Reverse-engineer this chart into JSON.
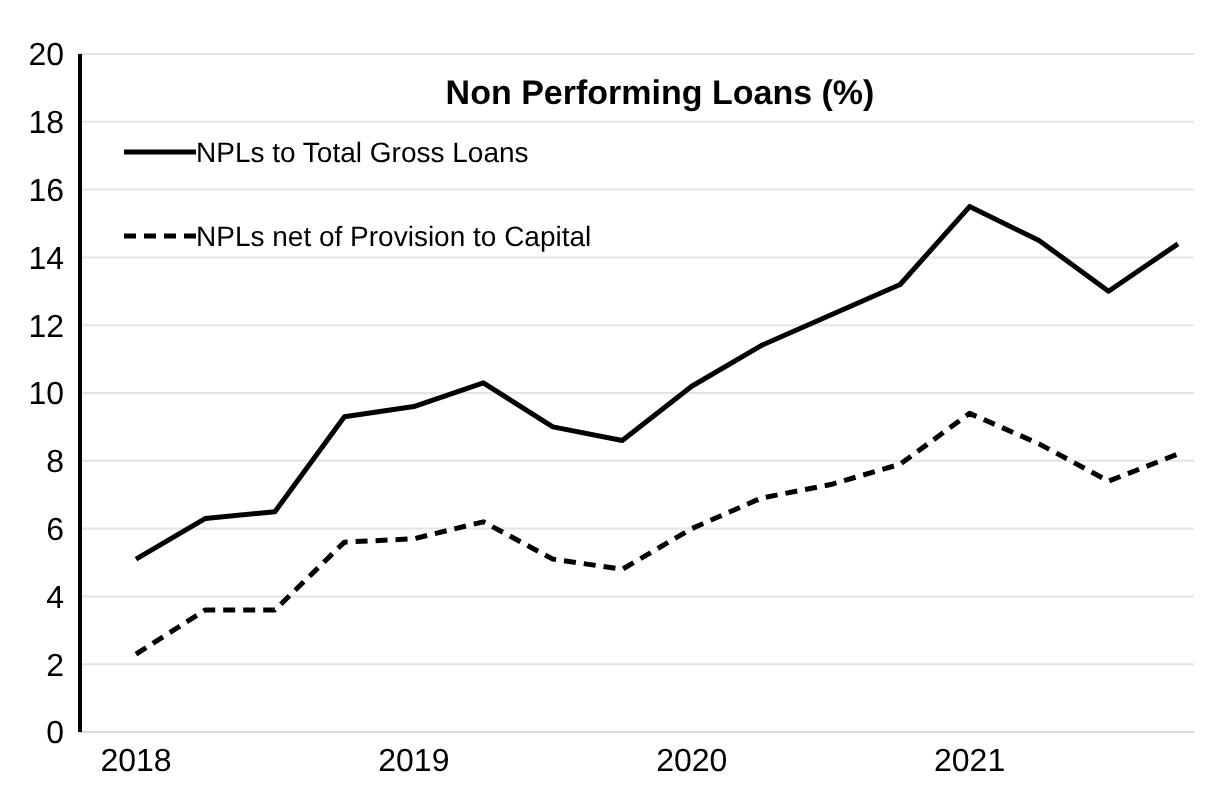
{
  "chart_data": {
    "type": "line",
    "title": "Non Performing Loans (%)",
    "categories": [
      "2018",
      null,
      null,
      null,
      "2019",
      null,
      null,
      null,
      "2020",
      null,
      null,
      null,
      "2021",
      null,
      null,
      null
    ],
    "series": [
      {
        "name": "NPLs to Total Gross Loans",
        "color": "#000000",
        "line_style": "solid",
        "values": [
          5.1,
          6.3,
          6.5,
          9.3,
          9.6,
          10.3,
          9.0,
          8.6,
          10.2,
          11.4,
          12.3,
          13.2,
          15.5,
          14.5,
          13.0,
          14.4
        ]
      },
      {
        "name": "NPLs net of Provision to Capital",
        "color": "#000000",
        "line_style": "dashed",
        "values": [
          2.3,
          3.6,
          3.6,
          5.6,
          5.7,
          6.2,
          5.1,
          4.8,
          6.0,
          6.9,
          7.3,
          7.9,
          9.4,
          8.5,
          7.4,
          8.2
        ]
      }
    ],
    "ylim": [
      0,
      20
    ],
    "yticks": [
      0,
      2,
      4,
      6,
      8,
      10,
      12,
      14,
      16,
      18,
      20
    ],
    "grid": "y",
    "legend": "top left",
    "marker": "none"
  }
}
